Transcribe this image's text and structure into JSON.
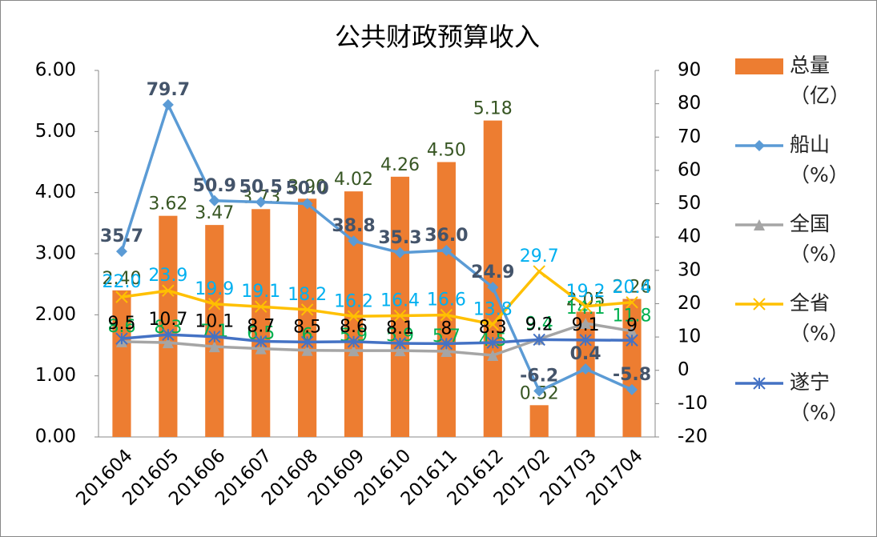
{
  "chart_data": {
    "type": "bar-line",
    "title": "公共财政预算收入",
    "categories": [
      "201604",
      "201605",
      "201606",
      "201607",
      "201608",
      "201609",
      "201610",
      "201611",
      "201612",
      "201702",
      "201703",
      "201704"
    ],
    "series": [
      {
        "name": "总量（亿）",
        "type": "bar",
        "axis": "y",
        "color": "#ed7d31",
        "label_color": "#375623",
        "values": [
          2.4,
          3.62,
          3.47,
          3.73,
          3.9,
          4.02,
          4.26,
          4.5,
          5.18,
          0.52,
          2.05,
          2.26
        ],
        "value_labels": [
          "2.40",
          "3.62",
          "3.47",
          "3.73",
          "3.90",
          "4.02",
          "4.26",
          "4.50",
          "5.18",
          "0.52",
          "2.05",
          "2.26"
        ]
      },
      {
        "name": "船山（%）",
        "type": "line",
        "axis": "y2",
        "marker": "diamond",
        "color": "#5b9bd5",
        "label_color": "#44546a",
        "values": [
          35.7,
          79.7,
          50.9,
          50.5,
          50.0,
          38.8,
          35.3,
          36.0,
          24.9,
          -6.2,
          0.4,
          -5.8
        ],
        "value_labels": [
          "35.7",
          "79.7",
          "50.9",
          "50.5",
          "50.0",
          "38.8",
          "35.3",
          "36.0",
          "24.9",
          "-6.2",
          "0.4",
          "-5.8"
        ]
      },
      {
        "name": "全国（%）",
        "type": "line",
        "axis": "y2",
        "marker": "triangle",
        "color": "#a5a5a5",
        "label_color": "#00b050",
        "values": [
          8.6,
          8.3,
          7.1,
          6.5,
          6,
          5.9,
          5.9,
          5.7,
          4.5,
          9.4,
          14.1,
          11.8
        ]
      },
      {
        "name": "全省（%）",
        "type": "line",
        "axis": "y2",
        "marker": "x",
        "color": "#ffc000",
        "label_color": "#00b0f0",
        "values": [
          22.0,
          23.9,
          19.9,
          19.1,
          18.2,
          16.2,
          16.4,
          16.6,
          13.8,
          29.7,
          19.2,
          20.4
        ],
        "value_labels": [
          "22.0",
          "23.9",
          "19.9",
          "19.1",
          "18.2",
          "16.2",
          "16.4",
          "16.6",
          "13.8",
          "29.7",
          "19.2",
          "20.4"
        ]
      },
      {
        "name": "遂宁（%）",
        "type": "line",
        "axis": "y2",
        "marker": "star",
        "color": "#4472c4",
        "label_color": "#000000",
        "values": [
          9.5,
          10.7,
          10.1,
          8.7,
          8.5,
          8.6,
          8.1,
          8,
          8.3,
          9.2,
          9.1,
          9
        ]
      }
    ],
    "ylim": [
      0,
      6
    ],
    "yticks": [
      {
        "value": 0,
        "label": "0.00"
      },
      {
        "value": 1,
        "label": "1.00"
      },
      {
        "value": 2,
        "label": "2.00"
      },
      {
        "value": 3,
        "label": "3.00"
      },
      {
        "value": 4,
        "label": "4.00"
      },
      {
        "value": 5,
        "label": "5.00"
      },
      {
        "value": 6,
        "label": "6.00"
      }
    ],
    "y2lim": [
      -20,
      90
    ],
    "y2ticks": [
      -20,
      -10,
      0,
      10,
      20,
      30,
      40,
      50,
      60,
      70,
      80,
      90
    ],
    "legend": "right"
  }
}
